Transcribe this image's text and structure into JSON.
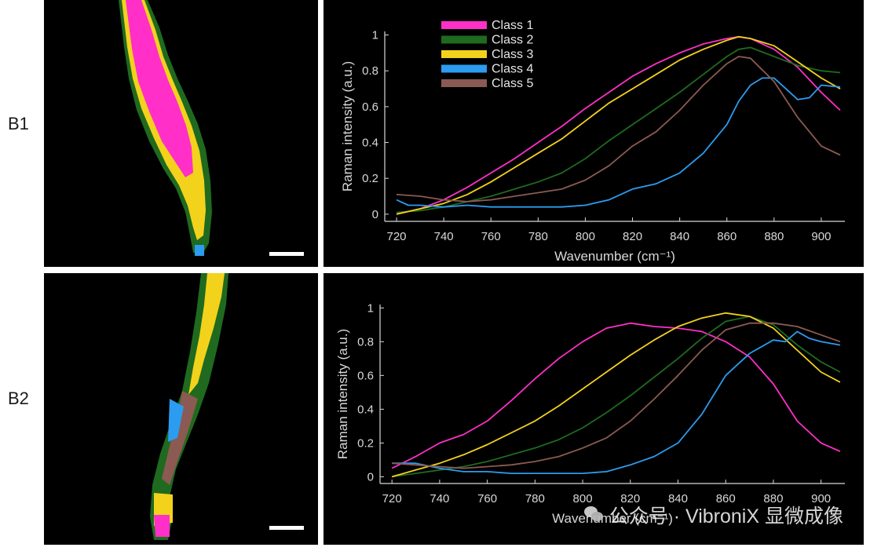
{
  "rows": [
    {
      "label": "B1"
    },
    {
      "label": "B2"
    }
  ],
  "watermark": {
    "text": "公众号 · VibroniX 显微成像"
  },
  "colors": {
    "class1": "#ff2fc8",
    "class2": "#1f6a1f",
    "class3": "#f3d21c",
    "class4": "#2b9cf0",
    "class5": "#8b5a52"
  },
  "chart_data": [
    {
      "type": "line",
      "panel": "B1",
      "xlabel": "Wavenumber (cm⁻¹)",
      "ylabel": "Raman intensity (a.u.)",
      "xlim": [
        715,
        910
      ],
      "ylim": [
        -0.04,
        1.02
      ],
      "xticks": [
        720,
        740,
        760,
        780,
        800,
        820,
        840,
        860,
        880,
        900
      ],
      "yticks": [
        0,
        0.2,
        0.4,
        0.6,
        0.8,
        1
      ],
      "ytick_labels": [
        "0",
        "0.2",
        "0.4",
        "0.6",
        "0.8",
        "1"
      ],
      "legend": "top-left",
      "series": [
        {
          "name": "Class 1",
          "color": "#ff2fc8",
          "x": [
            720,
            730,
            740,
            750,
            760,
            770,
            780,
            790,
            800,
            810,
            820,
            830,
            840,
            850,
            860,
            865,
            870,
            880,
            890,
            900,
            908
          ],
          "y": [
            0.0,
            0.03,
            0.08,
            0.15,
            0.23,
            0.31,
            0.4,
            0.49,
            0.59,
            0.68,
            0.77,
            0.84,
            0.9,
            0.95,
            0.98,
            0.99,
            0.98,
            0.92,
            0.82,
            0.68,
            0.58
          ]
        },
        {
          "name": "Class 2",
          "color": "#1f6a1f",
          "x": [
            720,
            730,
            740,
            750,
            760,
            770,
            780,
            790,
            800,
            810,
            820,
            830,
            840,
            850,
            860,
            865,
            870,
            880,
            890,
            900,
            908
          ],
          "y": [
            0.01,
            0.02,
            0.04,
            0.07,
            0.1,
            0.14,
            0.18,
            0.23,
            0.31,
            0.41,
            0.5,
            0.59,
            0.68,
            0.78,
            0.88,
            0.92,
            0.93,
            0.88,
            0.83,
            0.8,
            0.79
          ]
        },
        {
          "name": "Class 3",
          "color": "#f3d21c",
          "x": [
            720,
            730,
            740,
            750,
            760,
            770,
            780,
            790,
            800,
            810,
            820,
            830,
            840,
            850,
            860,
            865,
            870,
            880,
            890,
            900,
            908
          ],
          "y": [
            0.0,
            0.03,
            0.06,
            0.11,
            0.18,
            0.26,
            0.34,
            0.42,
            0.52,
            0.62,
            0.7,
            0.78,
            0.86,
            0.92,
            0.97,
            0.99,
            0.98,
            0.94,
            0.85,
            0.76,
            0.7
          ]
        },
        {
          "name": "Class 4",
          "color": "#2b9cf0",
          "x": [
            720,
            725,
            730,
            740,
            750,
            760,
            770,
            780,
            790,
            800,
            810,
            815,
            820,
            830,
            840,
            850,
            860,
            865,
            870,
            875,
            880,
            885,
            890,
            895,
            900,
            908
          ],
          "y": [
            0.08,
            0.05,
            0.05,
            0.04,
            0.05,
            0.04,
            0.04,
            0.04,
            0.04,
            0.05,
            0.08,
            0.11,
            0.14,
            0.17,
            0.23,
            0.34,
            0.5,
            0.63,
            0.72,
            0.76,
            0.76,
            0.7,
            0.64,
            0.65,
            0.72,
            0.71
          ]
        },
        {
          "name": "Class 5",
          "color": "#8b5a52",
          "x": [
            720,
            730,
            740,
            750,
            760,
            770,
            780,
            790,
            800,
            810,
            820,
            830,
            840,
            850,
            860,
            865,
            870,
            880,
            890,
            900,
            908
          ],
          "y": [
            0.11,
            0.1,
            0.08,
            0.07,
            0.08,
            0.1,
            0.12,
            0.14,
            0.19,
            0.27,
            0.38,
            0.46,
            0.58,
            0.72,
            0.84,
            0.88,
            0.87,
            0.74,
            0.54,
            0.38,
            0.33
          ]
        }
      ]
    },
    {
      "type": "line",
      "panel": "B2",
      "xlabel": "Wavenumber (cm⁻¹)",
      "ylabel": "Raman intensity (a.u.)",
      "xlim": [
        715,
        910
      ],
      "ylim": [
        -0.04,
        1.02
      ],
      "xticks": [
        720,
        740,
        760,
        780,
        800,
        820,
        840,
        860,
        880,
        900
      ],
      "yticks": [
        0,
        0.2,
        0.4,
        0.6,
        0.8,
        1
      ],
      "ytick_labels": [
        "0",
        "0.2",
        "0.4",
        "0.6",
        "0.8",
        "1"
      ],
      "series": [
        {
          "name": "Class 1",
          "color": "#ff2fc8",
          "x": [
            720,
            730,
            740,
            750,
            760,
            770,
            780,
            790,
            800,
            810,
            820,
            830,
            840,
            850,
            860,
            870,
            880,
            890,
            900,
            908
          ],
          "y": [
            0.05,
            0.12,
            0.2,
            0.25,
            0.33,
            0.45,
            0.58,
            0.7,
            0.8,
            0.88,
            0.91,
            0.89,
            0.88,
            0.86,
            0.8,
            0.71,
            0.55,
            0.33,
            0.2,
            0.15
          ]
        },
        {
          "name": "Class 2",
          "color": "#1f6a1f",
          "x": [
            720,
            730,
            740,
            750,
            760,
            770,
            780,
            790,
            800,
            810,
            820,
            830,
            840,
            850,
            860,
            870,
            880,
            890,
            900,
            908
          ],
          "y": [
            0.0,
            0.02,
            0.04,
            0.06,
            0.09,
            0.13,
            0.17,
            0.22,
            0.29,
            0.38,
            0.48,
            0.59,
            0.7,
            0.82,
            0.92,
            0.95,
            0.9,
            0.78,
            0.68,
            0.62
          ]
        },
        {
          "name": "Class 3",
          "color": "#f3d21c",
          "x": [
            720,
            730,
            740,
            750,
            760,
            770,
            780,
            790,
            800,
            810,
            820,
            830,
            840,
            850,
            860,
            870,
            880,
            890,
            900,
            908
          ],
          "y": [
            0.0,
            0.04,
            0.08,
            0.13,
            0.19,
            0.26,
            0.33,
            0.42,
            0.52,
            0.62,
            0.72,
            0.81,
            0.89,
            0.94,
            0.97,
            0.95,
            0.88,
            0.75,
            0.62,
            0.56
          ]
        },
        {
          "name": "Class 4",
          "color": "#2b9cf0",
          "x": [
            720,
            730,
            740,
            750,
            760,
            770,
            780,
            790,
            800,
            810,
            820,
            830,
            840,
            850,
            860,
            870,
            880,
            885,
            890,
            895,
            900,
            908
          ],
          "y": [
            0.08,
            0.08,
            0.05,
            0.03,
            0.03,
            0.02,
            0.02,
            0.02,
            0.02,
            0.03,
            0.07,
            0.12,
            0.2,
            0.37,
            0.6,
            0.73,
            0.81,
            0.8,
            0.86,
            0.82,
            0.8,
            0.78
          ]
        },
        {
          "name": "Class 5",
          "color": "#8b5a52",
          "x": [
            720,
            730,
            740,
            750,
            760,
            770,
            780,
            790,
            800,
            810,
            820,
            830,
            840,
            850,
            860,
            870,
            880,
            890,
            900,
            908
          ],
          "y": [
            0.08,
            0.07,
            0.06,
            0.05,
            0.06,
            0.07,
            0.09,
            0.12,
            0.17,
            0.23,
            0.33,
            0.46,
            0.6,
            0.75,
            0.87,
            0.91,
            0.91,
            0.89,
            0.84,
            0.8
          ]
        }
      ]
    }
  ]
}
